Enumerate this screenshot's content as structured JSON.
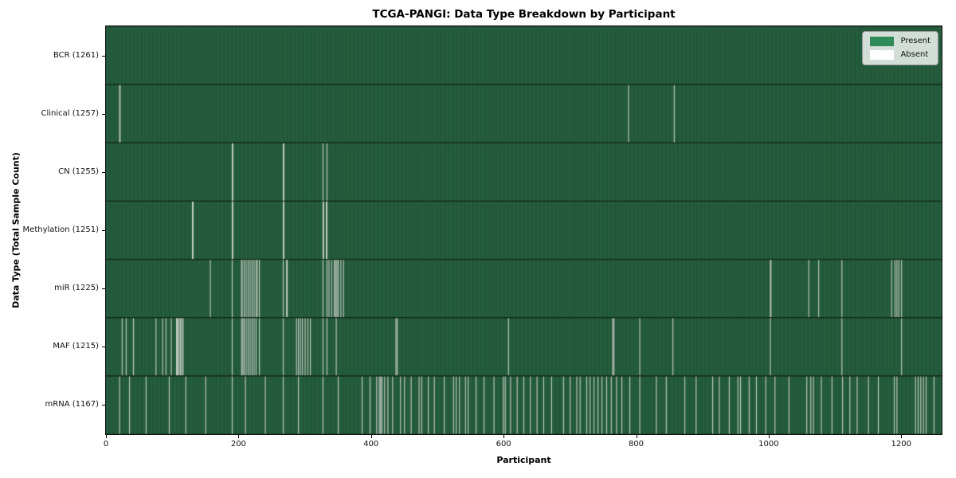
{
  "figure": {
    "title": "TCGA-PANGI: Data Type Breakdown by Participant",
    "xlabel": "Participant",
    "ylabel": "Data Type (Total Sample Count)"
  },
  "legend": {
    "items": [
      {
        "label": "Present",
        "color": "#2e8b57"
      },
      {
        "label": "Absent",
        "color": "#ffffff"
      }
    ]
  },
  "axes": {
    "x_ticks": [
      0,
      200,
      400,
      600,
      800,
      1000,
      1200
    ],
    "x_range": [
      0,
      1261
    ]
  },
  "colors": {
    "present": "#2e8b57",
    "absent": "#ffffff",
    "cell_edge_dark": "#1d3829",
    "absent_rendered": "#c7cfc7",
    "row_separator": "#12271a"
  },
  "chart_data": {
    "type": "heatmap",
    "title": "TCGA-PANGI: Data Type Breakdown by Participant",
    "xlabel": "Participant",
    "ylabel": "Data Type (Total Sample Count)",
    "legend": [
      "Present",
      "Absent"
    ],
    "x_range": [
      0,
      1261
    ],
    "n_participants": 1261,
    "grid": false,
    "legend_position": "upper right",
    "rows": [
      {
        "data_type": "BCR",
        "label": "BCR (1261)",
        "total_samples": 1261,
        "absent_participants": []
      },
      {
        "data_type": "Clinical",
        "label": "Clinical (1257)",
        "total_samples": 1257,
        "absent_participants": [
          20,
          21,
          788,
          857
        ]
      },
      {
        "data_type": "CN",
        "label": "CN (1255)",
        "total_samples": 1255,
        "absent_participants": [
          190,
          191,
          267,
          268,
          327,
          333
        ]
      },
      {
        "data_type": "Methylation",
        "label": "Methylation (1251)",
        "total_samples": 1251,
        "absent_participants": [
          130,
          131,
          190,
          191,
          267,
          268,
          327,
          328,
          332,
          333
        ]
      },
      {
        "data_type": "miR",
        "label": "miR (1225)",
        "total_samples": 1225,
        "absent_participants": [
          157,
          190,
          204,
          205,
          208,
          211,
          214,
          217,
          220,
          223,
          226,
          228,
          231,
          267,
          272,
          273,
          327,
          333,
          336,
          340,
          344,
          346,
          348,
          350,
          354,
          358,
          1002,
          1003,
          1060,
          1075,
          1110,
          1185,
          1190,
          1193,
          1196,
          1200
        ]
      },
      {
        "data_type": "MAF",
        "label": "MAF (1215)",
        "total_samples": 1215,
        "absent_participants": [
          24,
          30,
          41,
          75,
          85,
          90,
          98,
          106,
          107,
          108,
          110,
          112,
          114,
          116,
          190,
          204,
          206,
          208,
          211,
          214,
          217,
          220,
          223,
          226,
          231,
          267,
          287,
          290,
          293,
          296,
          300,
          304,
          308,
          327,
          333,
          347,
          437,
          439,
          607,
          764,
          766,
          805,
          855,
          1002,
          1110,
          1200
        ]
      },
      {
        "data_type": "mRNA",
        "label": "mRNA (1167)",
        "total_samples": 1167,
        "absent_participants": [
          20,
          35,
          60,
          95,
          120,
          150,
          190,
          210,
          240,
          267,
          290,
          327,
          350,
          386,
          398,
          408,
          412,
          414,
          416,
          420,
          425,
          432,
          444,
          450,
          460,
          472,
          476,
          486,
          495,
          510,
          524,
          528,
          533,
          542,
          546,
          558,
          570,
          585,
          599,
          602,
          610,
          620,
          630,
          640,
          650,
          660,
          672,
          690,
          700,
          710,
          715,
          725,
          730,
          736,
          742,
          748,
          755,
          762,
          770,
          778,
          790,
          805,
          830,
          845,
          873,
          890,
          915,
          925,
          940,
          953,
          957,
          970,
          981,
          995,
          1009,
          1030,
          1057,
          1063,
          1067,
          1079,
          1095,
          1111,
          1122,
          1133,
          1150,
          1165,
          1189,
          1193,
          1221,
          1225,
          1229,
          1233,
          1237,
          1249
        ]
      }
    ]
  }
}
